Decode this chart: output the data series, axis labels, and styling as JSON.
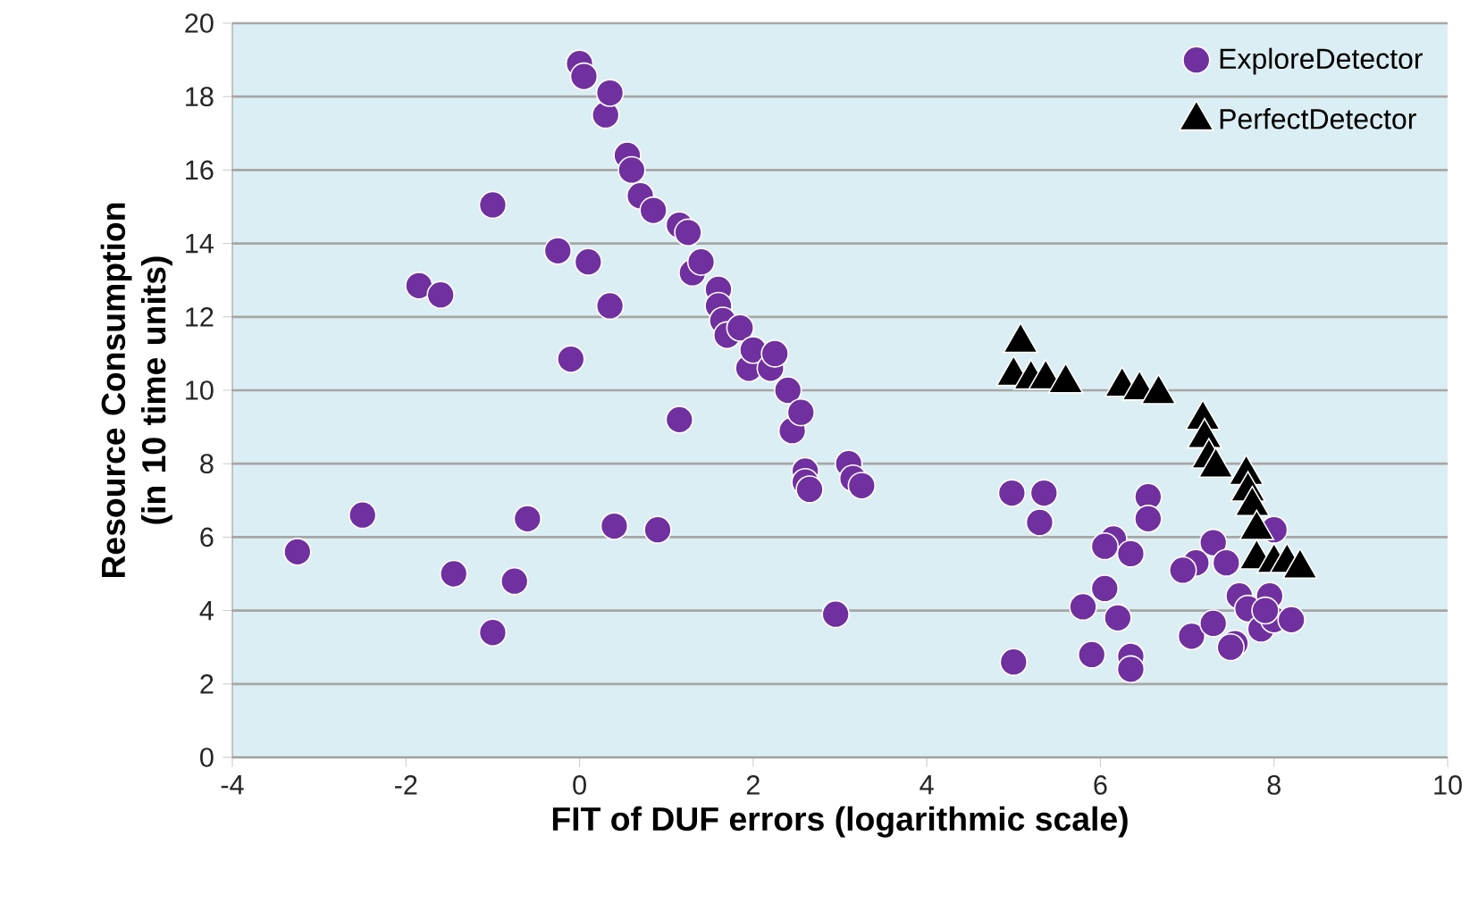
{
  "chart_data": {
    "type": "scatter",
    "xlabel": "FIT of DUF errors (logarithmic scale)",
    "ylabel": "Resource Consumption (in 10 time units)",
    "xlim": [
      -4,
      10
    ],
    "xticks": [
      -4,
      -2,
      0,
      2,
      4,
      6,
      8,
      10
    ],
    "ylim": [
      0,
      20
    ],
    "yticks": [
      0,
      2,
      4,
      6,
      8,
      10,
      12,
      14,
      16,
      18,
      20
    ],
    "grid": "y",
    "legend": "top right",
    "series": [
      {
        "name": "ExploreDetector",
        "color": "#7030a0",
        "marker": "circle",
        "x": [
          -3.25,
          -2.5,
          -1.85,
          -1.6,
          -1.45,
          -1.0,
          -1.0,
          -0.75,
          -0.6,
          -0.25,
          -0.1,
          0.0,
          0.05,
          0.1,
          0.3,
          0.35,
          0.35,
          0.4,
          0.55,
          0.6,
          0.7,
          0.85,
          0.9,
          1.15,
          1.25,
          1.15,
          1.3,
          1.4,
          1.6,
          1.6,
          1.65,
          1.7,
          1.85,
          1.95,
          2.0,
          2.2,
          2.25,
          2.4,
          2.45,
          2.55,
          2.6,
          2.6,
          2.65,
          2.95,
          3.1,
          3.15,
          3.25,
          4.98,
          5.35,
          5.3,
          5.0,
          6.55,
          6.55,
          6.15,
          6.05,
          6.35,
          6.05,
          5.8,
          6.2,
          5.9,
          6.35,
          6.35,
          7.3,
          7.1,
          6.95,
          7.45,
          7.05,
          7.3,
          7.55,
          7.5,
          7.6,
          7.7,
          7.85,
          8.0,
          8.2,
          7.95,
          8.0,
          7.9
        ],
        "values": [
          5.6,
          6.6,
          12.85,
          12.6,
          5.0,
          15.05,
          3.4,
          4.8,
          6.5,
          13.8,
          10.85,
          18.9,
          18.55,
          13.5,
          17.5,
          18.1,
          12.3,
          6.3,
          16.4,
          16.0,
          15.3,
          14.9,
          6.2,
          14.5,
          14.3,
          9.2,
          13.2,
          13.5,
          12.75,
          12.3,
          11.9,
          11.5,
          11.7,
          10.6,
          11.1,
          10.6,
          11.0,
          10.0,
          8.9,
          9.4,
          7.8,
          7.5,
          7.3,
          3.9,
          8.0,
          7.6,
          7.4,
          7.2,
          7.2,
          6.4,
          2.6,
          7.1,
          6.5,
          5.95,
          5.75,
          5.55,
          4.6,
          4.1,
          3.8,
          2.8,
          2.75,
          2.4,
          5.85,
          5.3,
          5.1,
          5.3,
          3.3,
          3.65,
          3.1,
          3.0,
          4.4,
          4.05,
          3.5,
          3.75,
          3.75,
          4.4,
          6.2,
          4.0
        ]
      },
      {
        "name": "PerfectDetector",
        "color": "#000000",
        "marker": "triangle",
        "x": [
          5.08,
          5.0,
          5.2,
          5.37,
          5.6,
          6.25,
          6.45,
          6.67,
          7.18,
          7.2,
          7.25,
          7.33,
          7.68,
          7.7,
          7.75,
          7.8,
          7.8,
          8.0,
          8.15,
          8.3
        ],
        "values": [
          11.3,
          10.4,
          10.3,
          10.3,
          10.2,
          10.1,
          10.0,
          9.9,
          9.2,
          8.7,
          8.15,
          7.9,
          7.7,
          7.25,
          6.85,
          6.2,
          5.4,
          5.3,
          5.3,
          5.15
        ]
      }
    ]
  }
}
